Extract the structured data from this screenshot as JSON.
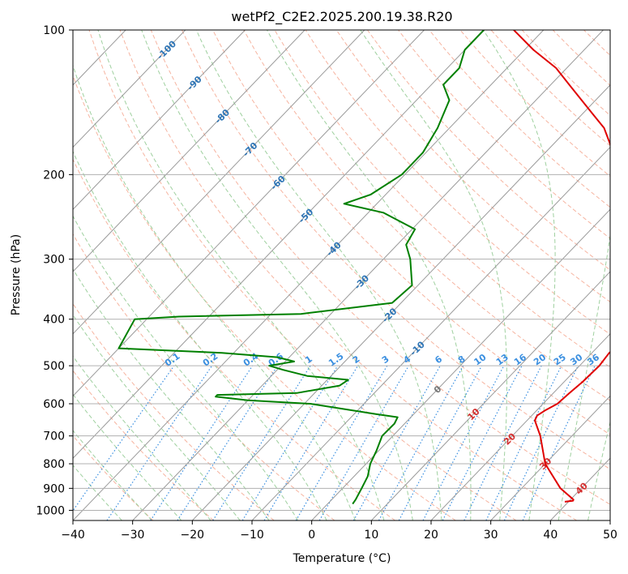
{
  "chart_data": {
    "type": "line",
    "subtype": "skew-T log-P diagram",
    "title": "wetPf2_C2E2.2025.200.19.38.R20",
    "xlabel": "Temperature (°C)",
    "ylabel": "Pressure (hPa)",
    "xlim": [
      -40,
      50
    ],
    "ylim": [
      1050,
      100
    ],
    "y_scale": "log",
    "x_ticks": [
      -40,
      -30,
      -20,
      -10,
      0,
      10,
      20,
      30,
      40,
      50
    ],
    "y_ticks": [
      100,
      200,
      300,
      400,
      500,
      600,
      700,
      800,
      900,
      1000
    ],
    "grid": true,
    "colors": {
      "temperature": "#e00000",
      "dewpoint": "#008000",
      "isotherm": "#9a9a9a",
      "dry_adiabat": "#f6b4a0",
      "moist_adiabat": "#9fd09f",
      "mixing_ratio": "#3a8fe0",
      "isotherm_label": "#2e75b6",
      "adiabat_label": "#d32f2f"
    },
    "series": [
      {
        "role": "temperature",
        "points": [
          {
            "p": 960,
            "t": 39.4
          },
          {
            "p": 955,
            "t": 40.6
          },
          {
            "p": 950,
            "t": 40.5
          },
          {
            "p": 900,
            "t": 36.5
          },
          {
            "p": 800,
            "t": 30.0
          },
          {
            "p": 700,
            "t": 24.7
          },
          {
            "p": 650,
            "t": 21.3
          },
          {
            "p": 635,
            "t": 20.9
          },
          {
            "p": 620,
            "t": 21.4
          },
          {
            "p": 600,
            "t": 22.4
          },
          {
            "p": 570,
            "t": 22.7
          },
          {
            "p": 540,
            "t": 23.1
          },
          {
            "p": 500,
            "t": 23.3
          },
          {
            "p": 470,
            "t": 22.9
          },
          {
            "p": 450,
            "t": 23.4
          },
          {
            "p": 420,
            "t": 23.6
          },
          {
            "p": 400,
            "t": 22.6
          },
          {
            "p": 380,
            "t": 20.1
          },
          {
            "p": 350,
            "t": 17.4
          },
          {
            "p": 300,
            "t": 11.7
          },
          {
            "p": 270,
            "t": 7.6
          },
          {
            "p": 250,
            "t": 5.9
          },
          {
            "p": 220,
            "t": 0.4
          },
          {
            "p": 200,
            "t": -4.5
          },
          {
            "p": 180,
            "t": -8.6
          },
          {
            "p": 160,
            "t": -14.1
          },
          {
            "p": 150,
            "t": -18.1
          },
          {
            "p": 130,
            "t": -26.9
          },
          {
            "p": 120,
            "t": -31.8
          },
          {
            "p": 110,
            "t": -38.5
          },
          {
            "p": 100,
            "t": -45.0
          }
        ]
      },
      {
        "role": "dewpoint",
        "points": [
          {
            "p": 970,
            "t": 4.2
          },
          {
            "p": 950,
            "t": 4.0
          },
          {
            "p": 900,
            "t": 3.2
          },
          {
            "p": 850,
            "t": 2.3
          },
          {
            "p": 800,
            "t": 0.7
          },
          {
            "p": 750,
            "t": -0.4
          },
          {
            "p": 700,
            "t": -1.8
          },
          {
            "p": 660,
            "t": -1.7
          },
          {
            "p": 640,
            "t": -2.2
          },
          {
            "p": 630,
            "t": -6.5
          },
          {
            "p": 600,
            "t": -19.0
          },
          {
            "p": 590,
            "t": -30.0
          },
          {
            "p": 580,
            "t": -36.0
          },
          {
            "p": 575,
            "t": -36.0
          },
          {
            "p": 570,
            "t": -23.0
          },
          {
            "p": 550,
            "t": -17.0
          },
          {
            "p": 535,
            "t": -16.5
          },
          {
            "p": 525,
            "t": -24.0
          },
          {
            "p": 510,
            "t": -29.0
          },
          {
            "p": 500,
            "t": -32.0
          },
          {
            "p": 490,
            "t": -28.5
          },
          {
            "p": 480,
            "t": -32.0
          },
          {
            "p": 470,
            "t": -42.0
          },
          {
            "p": 460,
            "t": -60.0
          },
          {
            "p": 400,
            "t": -62.0
          },
          {
            "p": 395,
            "t": -55.0
          },
          {
            "p": 390,
            "t": -35.0
          },
          {
            "p": 370,
            "t": -21.5
          },
          {
            "p": 340,
            "t": -21.0
          },
          {
            "p": 300,
            "t": -25.5
          },
          {
            "p": 280,
            "t": -28.5
          },
          {
            "p": 260,
            "t": -29.5
          },
          {
            "p": 240,
            "t": -37.5
          },
          {
            "p": 230,
            "t": -45.5
          },
          {
            "p": 220,
            "t": -42.5
          },
          {
            "p": 200,
            "t": -40.5
          },
          {
            "p": 180,
            "t": -40.5
          },
          {
            "p": 160,
            "t": -42.0
          },
          {
            "p": 140,
            "t": -44.5
          },
          {
            "p": 130,
            "t": -48.0
          },
          {
            "p": 120,
            "t": -48.0
          },
          {
            "p": 110,
            "t": -50.0
          },
          {
            "p": 100,
            "t": -50.0
          }
        ]
      }
    ],
    "isotherm_labels": [
      "-100",
      "-90",
      "-80",
      "-70",
      "-60",
      "-50",
      "-40",
      "-30",
      "-20",
      "-10",
      "0",
      "10",
      "20",
      "30",
      "40"
    ],
    "mixing_ratio_labels": [
      "0.1",
      "0.2",
      "0.4",
      "0.6",
      "1",
      "1.5",
      "2",
      "3",
      "4",
      "6",
      "8",
      "10",
      "13",
      "16",
      "20",
      "25",
      "30",
      "36"
    ]
  }
}
